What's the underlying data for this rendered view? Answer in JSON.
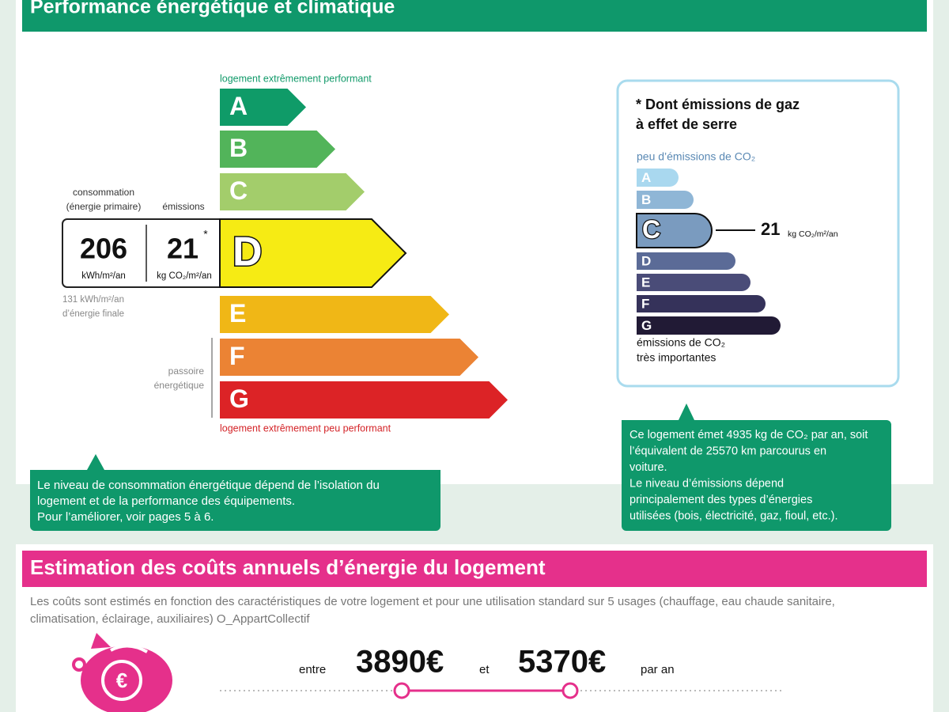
{
  "energy_section": {
    "title": "Performance énergétique et climatique",
    "top_label": "logement extrêmement performant",
    "bottom_label": "logement extrêmement peu performant",
    "classes": [
      "A",
      "B",
      "C",
      "D",
      "E",
      "F",
      "G"
    ],
    "consumption_label": [
      "consommation",
      "(énergie primaire)"
    ],
    "emissions_label": "émissions",
    "consumption_value": 206,
    "consumption_unit": "kWh/m²/an",
    "emissions_value": 21,
    "emissions_mark": "*",
    "emissions_unit": "kg CO₂/m²/an",
    "final_energy": [
      "131 kWh/m²/an",
      "d’énergie finale"
    ],
    "passoire": [
      "passoire",
      "énergétique"
    ],
    "note": [
      "Le niveau de consommation énergétique dépend de l’isolation du",
      "logement et de la performance des équipements.",
      "Pour l’améliorer, voir pages 5 à 6."
    ]
  },
  "ghg_panel": {
    "title": [
      "* Dont émissions de gaz",
      "à effet de serre"
    ],
    "top_label": "peu d’émissions de CO₂",
    "classes": [
      "A",
      "B",
      "C",
      "D",
      "E",
      "F",
      "G"
    ],
    "value": 21,
    "unit": "kg CO₂/m²/an",
    "bottom_label": [
      "émissions de CO₂",
      "très importantes"
    ],
    "note": [
      "Ce logement émet 4935 kg de CO₂ par an, soit",
      "l’équivalent de 25570 km parcourus en",
      "voiture.",
      "Le niveau d’émissions dépend",
      "principalement des types d’énergies",
      "utilisées (bois, électricité, gaz, fioul, etc.)."
    ]
  },
  "cost_section": {
    "title": "Estimation des coûts annuels d’énergie du logement",
    "description": [
      "Les coûts sont estimés en fonction des caractéristiques de votre logement et pour une utilisation standard sur 5 usages (chauffage, eau chaude sanitaire,",
      "climatisation, éclairage, auxiliaires) O_AppartCollectif"
    ],
    "between": "entre",
    "low": "3890€",
    "and": "et",
    "high": "5370€",
    "per_year": "par an"
  }
}
